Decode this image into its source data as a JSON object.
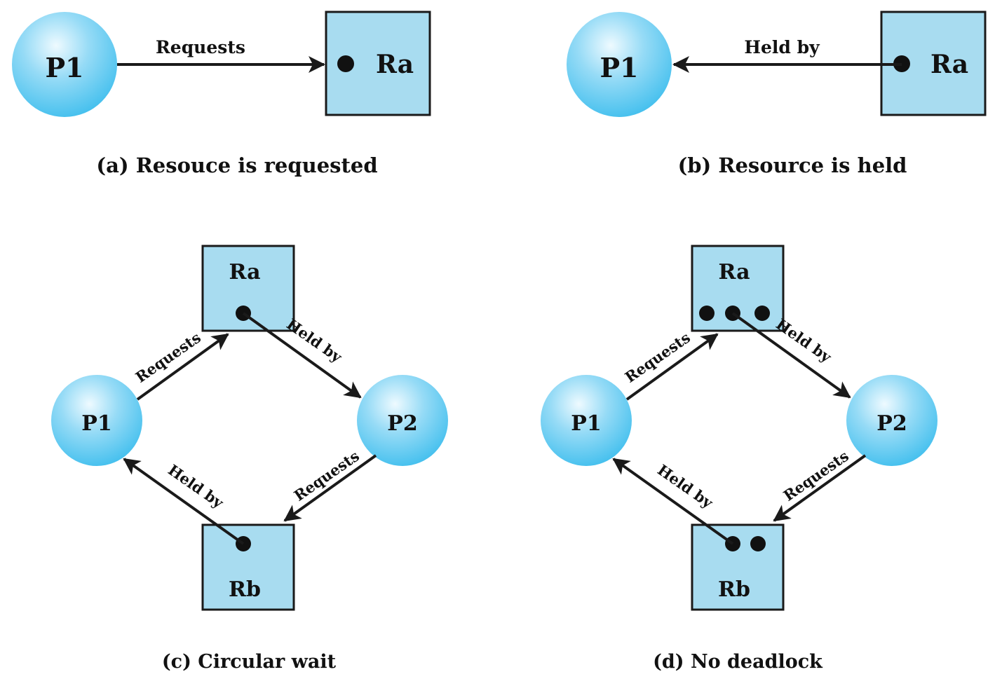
{
  "colors": {
    "resource_fill": "#a8dcf0",
    "process_light": "#e8f8ff",
    "process_mid": "#8ed8f6",
    "process_dark": "#4cc3ee",
    "ink": "#1a1a1a"
  },
  "panel_a": {
    "process": "P1",
    "resource": "Ra",
    "edge_label": "Requests",
    "caption": "(a) Resouce is requested"
  },
  "panel_b": {
    "process": "P1",
    "resource": "Ra",
    "edge_label": "Held by",
    "caption": "(b) Resource is held"
  },
  "panel_c": {
    "process_1": "P1",
    "process_2": "P2",
    "resource_a": "Ra",
    "resource_b": "Rb",
    "label_p1_ra": "Requests",
    "label_ra_p2": "Held by",
    "label_p2_rb": "Requests",
    "label_rb_p1": "Held by",
    "caption": "(c) Circular wait"
  },
  "panel_d": {
    "process_1": "P1",
    "process_2": "P2",
    "resource_a": "Ra",
    "resource_b": "Rb",
    "label_p1_ra": "Requests",
    "label_ra_p2": "Held by",
    "label_p2_rb": "Requests",
    "label_rb_p1": "Held by",
    "caption": "(d) No deadlock"
  }
}
